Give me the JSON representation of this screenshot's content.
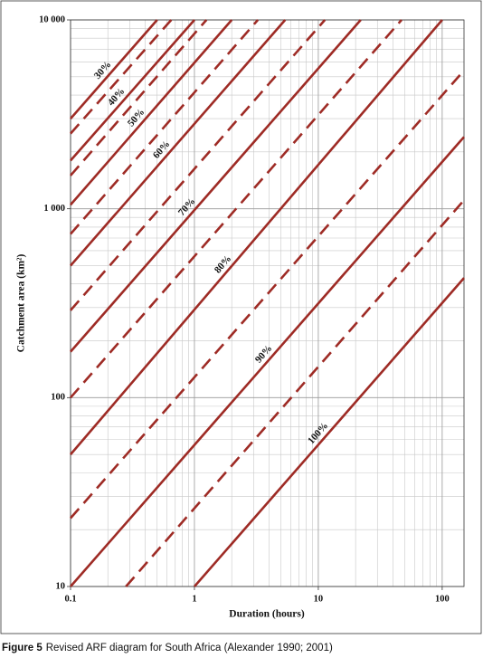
{
  "chart_data": {
    "type": "line",
    "xlabel": "Duration (hours)",
    "ylabel": "Catchment area (km²)",
    "xscale": "log",
    "yscale": "log",
    "xlim": [
      0.1,
      150
    ],
    "ylim": [
      10,
      10000
    ],
    "xticks": [
      0.1,
      1,
      10,
      100
    ],
    "yticks": [
      10,
      100,
      {
        "value": 1000,
        "label": "1 000"
      },
      {
        "value": 10000,
        "label": "10 000"
      }
    ],
    "grid": true,
    "color": "#9e2b25",
    "series": [
      {
        "name": "30%",
        "style": "solid",
        "x": [
          0.1,
          0.5
        ],
        "values": [
          3000,
          10000
        ]
      },
      {
        "style": "dashed",
        "x": [
          0.1,
          0.65
        ],
        "values": [
          2500,
          10000
        ]
      },
      {
        "name": "40%",
        "style": "solid",
        "x": [
          0.1,
          1
        ],
        "values": [
          1800,
          10000
        ]
      },
      {
        "style": "dashed",
        "x": [
          0.1,
          1.25
        ],
        "values": [
          1500,
          10000
        ]
      },
      {
        "name": "50%",
        "style": "solid",
        "x": [
          0.1,
          2
        ],
        "values": [
          1050,
          10000
        ]
      },
      {
        "style": "dashed",
        "x": [
          0.1,
          3.25
        ],
        "values": [
          735,
          10000
        ]
      },
      {
        "name": "60%",
        "style": "solid",
        "x": [
          0.1,
          5.4
        ],
        "values": [
          500,
          10000
        ]
      },
      {
        "style": "dashed",
        "x": [
          0.1,
          11.3
        ],
        "values": [
          290,
          10000
        ]
      },
      {
        "name": "70%",
        "style": "solid",
        "x": [
          0.1,
          22
        ],
        "values": [
          175,
          10000
        ]
      },
      {
        "style": "dashed",
        "x": [
          0.1,
          47
        ],
        "values": [
          100,
          10000
        ]
      },
      {
        "name": "80%",
        "style": "solid",
        "x": [
          0.1,
          100
        ],
        "values": [
          50,
          10000
        ]
      },
      {
        "style": "dashed",
        "x": [
          0.1,
          150
        ],
        "values": [
          23,
          5400
        ]
      },
      {
        "name": "90%",
        "style": "solid",
        "x": [
          0.1,
          150
        ],
        "values": [
          10,
          2400
        ]
      },
      {
        "style": "dashed",
        "x": [
          0.28,
          150
        ],
        "values": [
          10,
          1110
        ]
      },
      {
        "name": "100%",
        "style": "solid",
        "x": [
          1,
          150
        ],
        "values": [
          10,
          430
        ]
      }
    ],
    "caption": {
      "label": "Figure 5",
      "text": "Revised ARF diagram for South Africa (Alexander 1990; 2001)"
    }
  }
}
